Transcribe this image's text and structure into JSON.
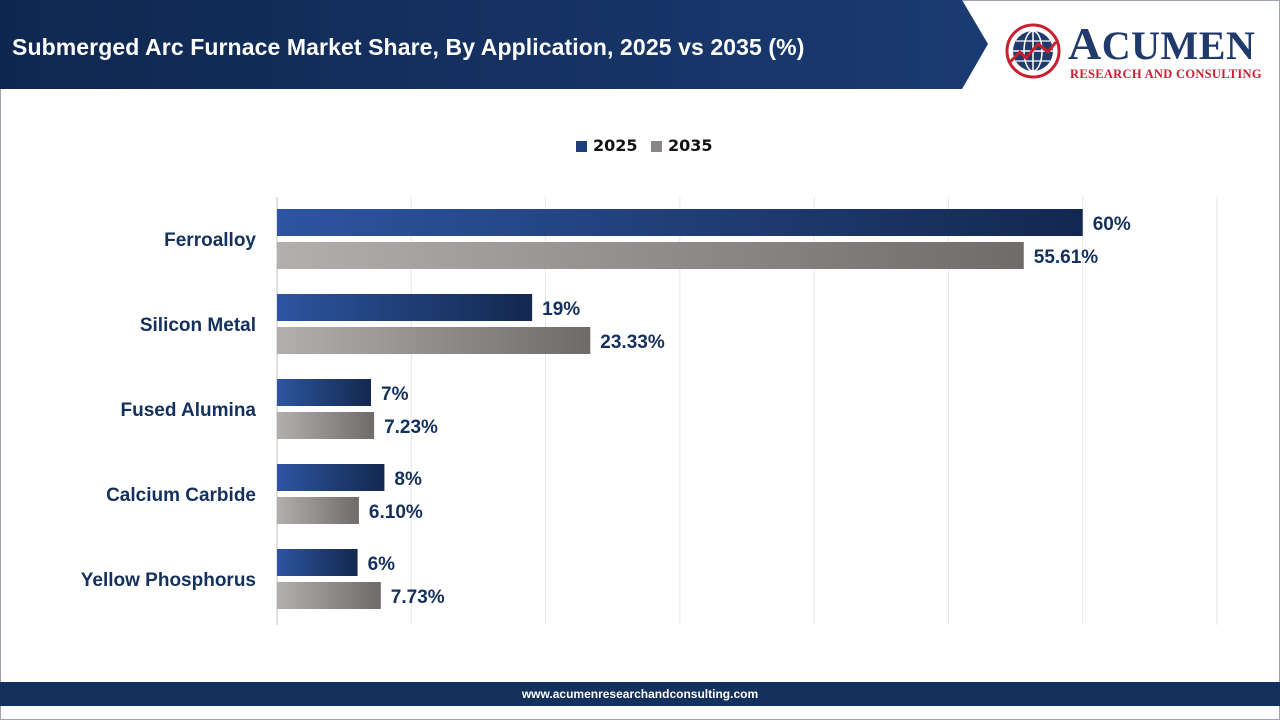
{
  "header": {
    "title": "Submerged Arc Furnace Market Share, By Application, 2025 vs 2035 (%)"
  },
  "logo": {
    "name_first": "A",
    "name_rest": "CUMEN",
    "subtitle": "RESEARCH AND CONSULTING",
    "icon": "globe-logo-icon"
  },
  "colors": {
    "header_bg": "#14305c",
    "series_2025": "#1f3f7a",
    "series_2035": "#7a7675",
    "label_text": "#14305c",
    "brand_red": "#c8202f"
  },
  "chart_data": {
    "type": "bar",
    "orientation": "horizontal",
    "categories": [
      "Ferroalloy",
      "Silicon Metal",
      "Fused Alumina",
      "Calcium Carbide",
      "Yellow Phosphorus"
    ],
    "series": [
      {
        "name": "2025",
        "values": [
          60,
          19,
          7,
          8,
          6
        ],
        "labels": [
          "60%",
          "19%",
          "7%",
          "8%",
          "6%"
        ]
      },
      {
        "name": "2035",
        "values": [
          55.61,
          23.33,
          7.23,
          6.1,
          7.73
        ],
        "labels": [
          "55.61%",
          "23.33%",
          "7.23%",
          "6.10%",
          "7.73%"
        ]
      }
    ],
    "title": "Submerged Arc Furnace Market Share, By Application, 2025 vs 2035 (%)",
    "xlim": [
      0,
      70
    ],
    "grid": true,
    "legend_position": "top-center"
  },
  "footer": {
    "url": "www.acumenresearchandconsulting.com"
  }
}
